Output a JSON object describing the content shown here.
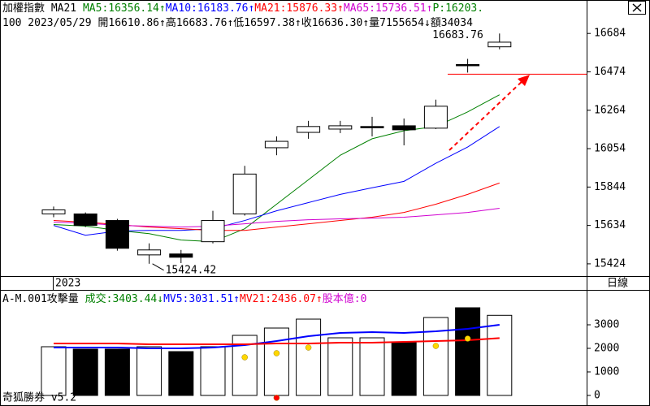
{
  "chart_data": [
    {
      "type": "candlestick",
      "header": [
        [
          {
            "text": "加權指數 MA21 ",
            "color": "#000000"
          },
          {
            "text": "MA5:16356.14↑",
            "color": "#008000"
          },
          {
            "text": "MA10:16183.76↑",
            "color": "#0000ff"
          },
          {
            "text": "MA21:15876.33↑",
            "color": "#ff0000"
          },
          {
            "text": "MA65:15736.51↑",
            "color": "#d000d0"
          },
          {
            "text": "P:16203.",
            "color": "#008000"
          }
        ],
        [
          {
            "text": "100 2023/05/29 開16610.86↑高16683.76↑低16597.38↑收16636.30↑量7155654↓額34034",
            "color": "#000000"
          }
        ]
      ],
      "categories": [
        "2023",
        null,
        null,
        null,
        null,
        null,
        null,
        null,
        null,
        null,
        null,
        null,
        null,
        null,
        null
      ],
      "open": [
        15697,
        15697,
        15661,
        15473,
        15478,
        15545,
        15697,
        16059,
        16143,
        16161,
        16175,
        16179,
        16166,
        16514,
        16610.86
      ],
      "high": [
        15737,
        15705,
        15670,
        15536,
        15500,
        15714,
        15960,
        16121,
        16206,
        16206,
        16228,
        16219,
        16322,
        16545,
        16683.76
      ],
      "low": [
        15679,
        15625,
        15496,
        15424.42,
        15428,
        15536,
        15688,
        16018,
        16108,
        16139,
        16121,
        16072,
        16161,
        16470,
        16597.38
      ],
      "close": [
        15719,
        15634,
        15509,
        15500,
        15460,
        15661,
        15915,
        16094,
        16175,
        16179,
        16170,
        16157,
        16286,
        16510,
        16636.3
      ],
      "series": [
        {
          "color": "#008000",
          "values": [
            15639,
            15630,
            15607,
            15589,
            15554,
            15545,
            15616,
            15750,
            15884,
            16018,
            16108,
            16152,
            16175,
            16255,
            16349
          ]
        },
        {
          "color": "#0000ff",
          "values": [
            15634,
            15580,
            15603,
            15607,
            15607,
            15616,
            15661,
            15714,
            15759,
            15804,
            15840,
            15875,
            15974,
            16063,
            16175
          ]
        },
        {
          "color": "#ff0000",
          "values": [
            15661,
            15652,
            15639,
            15625,
            15616,
            15607,
            15607,
            15625,
            15643,
            15661,
            15679,
            15705,
            15750,
            15804,
            15866
          ]
        },
        {
          "color": "#d000d0",
          "values": [
            15652,
            15647,
            15634,
            15630,
            15625,
            15630,
            15643,
            15656,
            15665,
            15670,
            15674,
            15679,
            15692,
            15705,
            15728
          ]
        }
      ],
      "hline": 16461,
      "hline_color": "#ff0000",
      "ylim": [
        15357,
        16867
      ],
      "yticks": [
        16684,
        16474,
        16264,
        16054,
        15844,
        15634,
        15424
      ],
      "period": "日線"
    },
    {
      "type": "bar",
      "header": [
        [
          {
            "text": "A-M.001攻擊量 ",
            "color": "#000000"
          },
          {
            "text": "成交:3403.44↓",
            "color": "#008000"
          },
          {
            "text": "MV5:3031.51↑",
            "color": "#0000ff"
          },
          {
            "text": "MV21:2436.07↑",
            "color": "#ff0000"
          },
          {
            "text": "股本億:0",
            "color": "#d000d0"
          }
        ]
      ],
      "values": [
        2069,
        1966,
        1966,
        2069,
        1862,
        2069,
        2552,
        2862,
        3241,
        2448,
        2448,
        2241,
        3310,
        3724,
        3403.44
      ],
      "bar_fill": [
        "#ffffff",
        "#000000",
        "#000000",
        "#ffffff",
        "#000000",
        "#ffffff",
        "#ffffff",
        "#ffffff",
        "#ffffff",
        "#ffffff",
        "#ffffff",
        "#000000",
        "#ffffff",
        "#000000",
        "#ffffff"
      ],
      "series": [
        {
          "color": "#0000ff",
          "values": [
            2034,
            2034,
            2034,
            2000,
            2000,
            2034,
            2138,
            2310,
            2517,
            2655,
            2690,
            2655,
            2724,
            2828,
            3000
          ]
        },
        {
          "color": "#ff0000",
          "values": [
            2207,
            2207,
            2207,
            2172,
            2172,
            2172,
            2172,
            2207,
            2207,
            2241,
            2241,
            2276,
            2310,
            2345,
            2436.07
          ]
        }
      ],
      "dots": [
        {
          "color": "#ffd700",
          "values": [
            null,
            null,
            null,
            null,
            null,
            null,
            1621,
            1793,
            2034,
            null,
            null,
            null,
            2103,
            2414,
            null
          ]
        },
        {
          "color": "#ff0000",
          "values": [
            null,
            null,
            null,
            null,
            null,
            null,
            null,
            -100,
            null,
            null,
            null,
            null,
            null,
            null,
            null
          ]
        }
      ],
      "ylim": [
        -345,
        4483
      ],
      "yticks": [
        3000,
        2000,
        1000,
        0
      ],
      "footer": "奇狐勝券 v5.2"
    }
  ]
}
